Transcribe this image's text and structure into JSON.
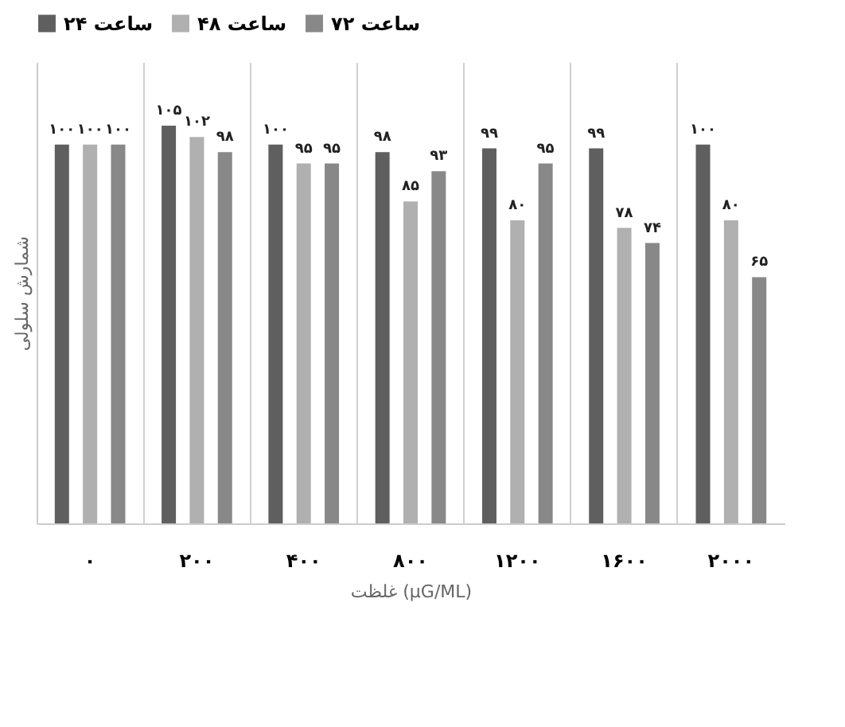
{
  "chart_data": {
    "type": "bar",
    "xlabel": "غلظت (µG/ML)",
    "ylabel": "شمارش سلولی",
    "categories": [
      "۰",
      "۲۰۰",
      "۴۰۰",
      "۸۰۰",
      "۱۲۰۰",
      "۱۶۰۰",
      "۲۰۰۰"
    ],
    "series": [
      {
        "name": "۲۴ ساعت",
        "color": "#5f5f5f",
        "values": [
          100,
          105,
          100,
          98,
          99,
          99,
          100
        ],
        "value_labels": [
          "۱۰۰",
          "۱۰۵",
          "۱۰۰",
          "۹۸",
          "۹۹",
          "۹۹",
          "۱۰۰"
        ]
      },
      {
        "name": "۴۸ ساعت",
        "color": "#b0b0b0",
        "values": [
          100,
          102,
          95,
          85,
          80,
          78,
          80
        ],
        "value_labels": [
          "۱۰۰",
          "۱۰۲",
          "۹۵",
          "۸۵",
          "۸۰",
          "۷۸",
          "۸۰"
        ]
      },
      {
        "name": "۷۲ ساعت",
        "color": "#888888",
        "values": [
          100,
          98,
          95,
          93,
          95,
          74,
          65
        ],
        "value_labels": [
          "۱۰۰",
          "۹۸",
          "۹۵",
          "۹۳",
          "۹۵",
          "۷۴",
          "۶۵"
        ]
      }
    ],
    "grid": "x",
    "legend": "top",
    "tick_labels": "x"
  }
}
